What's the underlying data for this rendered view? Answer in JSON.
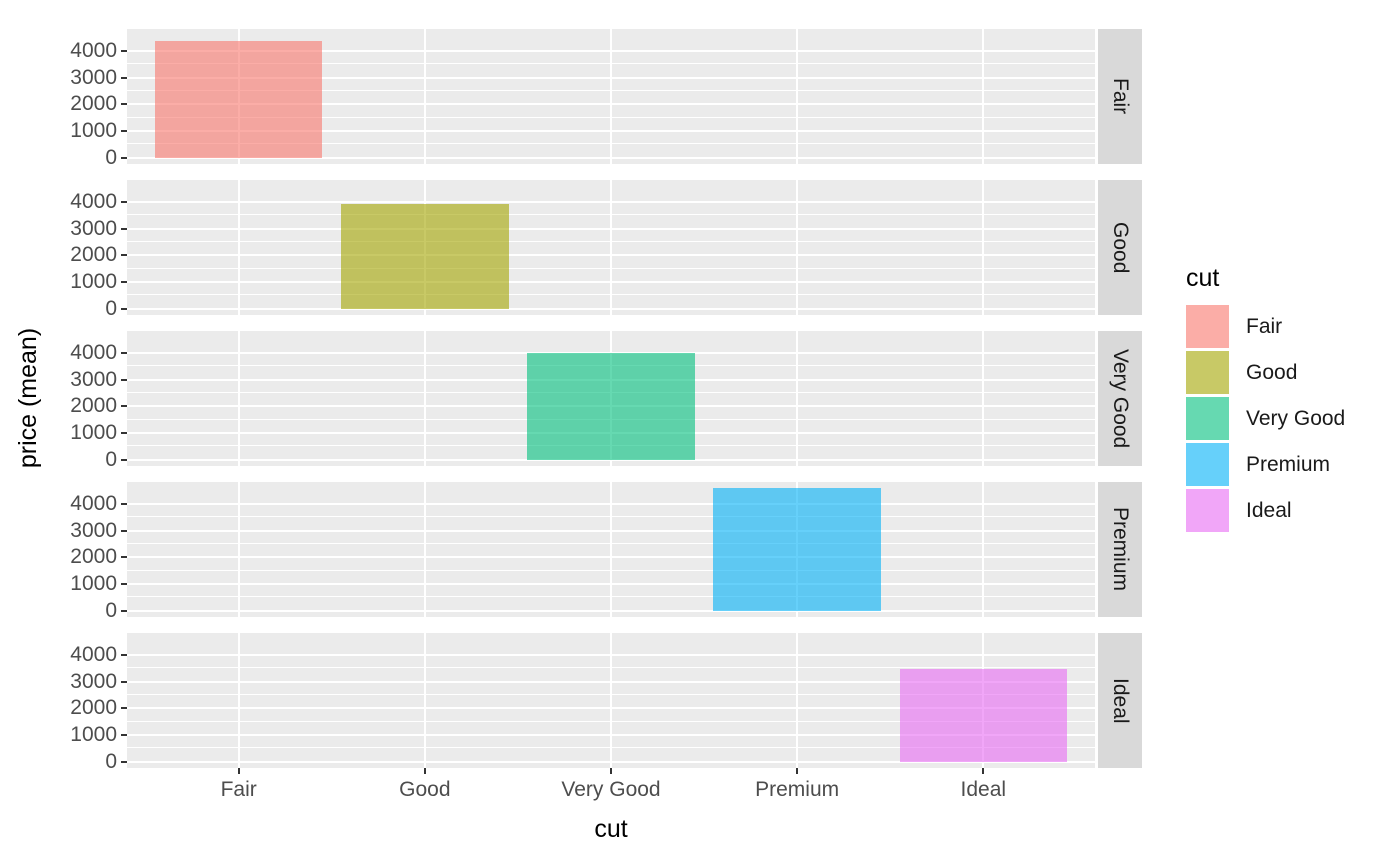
{
  "chart_data": {
    "type": "bar",
    "title": "",
    "xlabel": "cut",
    "ylabel": "price (mean)",
    "facet_variable": "cut",
    "categories": [
      "Fair",
      "Good",
      "Very Good",
      "Premium",
      "Ideal"
    ],
    "values": [
      4358.76,
      3928.86,
      3981.76,
      4584.26,
      3457.54
    ],
    "facets": [
      {
        "label": "Fair",
        "category": "Fair",
        "value": 4358.76,
        "fill": "rgba(248,118,109,0.6)",
        "base_hex": "#F8766D"
      },
      {
        "label": "Good",
        "category": "Good",
        "value": 3928.86,
        "fill": "rgba(163,165,0,0.6)",
        "base_hex": "#A3A500"
      },
      {
        "label": "Very Good",
        "category": "Very Good",
        "value": 3981.76,
        "fill": "rgba(0,191,125,0.6)",
        "base_hex": "#00BF7D"
      },
      {
        "label": "Premium",
        "category": "Premium",
        "value": 4584.26,
        "fill": "rgba(0,176,246,0.6)",
        "base_hex": "#00B0F6"
      },
      {
        "label": "Ideal",
        "category": "Ideal",
        "value": 3457.54,
        "fill": "rgba(231,107,243,0.6)",
        "base_hex": "#E76BF3"
      }
    ],
    "y_axis": {
      "ticks": [
        0,
        1000,
        2000,
        3000,
        4000
      ],
      "minor_ticks": [
        500,
        1500,
        2500,
        3500
      ],
      "limits": [
        -229.2,
        4813.5
      ]
    },
    "legend": {
      "title": "cut",
      "position": "right",
      "entries": [
        {
          "label": "Fair",
          "fill": "rgba(248,118,109,0.6)"
        },
        {
          "label": "Good",
          "fill": "rgba(163,165,0,0.6)"
        },
        {
          "label": "Very Good",
          "fill": "rgba(0,191,125,0.6)"
        },
        {
          "label": "Premium",
          "fill": "rgba(0,176,246,0.6)"
        },
        {
          "label": "Ideal",
          "fill": "rgba(231,107,243,0.6)"
        }
      ]
    },
    "grid": true,
    "bar_rel_width": 0.9
  },
  "style": {
    "background": "#FFFFFF",
    "panel_bg": "#EBEBEB",
    "strip_bg": "#D9D9D9",
    "grid_color": "#FFFFFF",
    "tick_color": "#333333",
    "axis_text_color": "#4D4D4D",
    "strip_text_color": "#1A1A1A",
    "title_color": "#000000"
  }
}
